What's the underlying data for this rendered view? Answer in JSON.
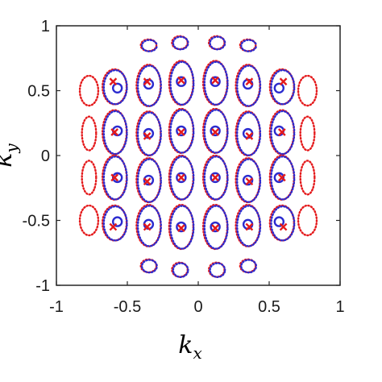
{
  "chart_data": {
    "type": "scatter",
    "title": "",
    "xlabel": {
      "base": "k",
      "sub": "x"
    },
    "ylabel": {
      "base": "k",
      "sub": "y"
    },
    "xlim": [
      -1,
      1
    ],
    "ylim": [
      -1,
      1
    ],
    "xticks": [
      "-1",
      "-0.5",
      "0",
      "0.5",
      "1"
    ],
    "yticks": [
      "1",
      "0.5",
      "0",
      "-0.5",
      "-1"
    ],
    "grid": false,
    "legend": "none",
    "colors": {
      "red": "#e41a1c",
      "blue": "#2b2bcf",
      "axis": "#262626"
    },
    "series": [
      {
        "marker": "o",
        "color": "blue",
        "points": [
          [
            -0.57,
            0.52
          ],
          [
            -0.35,
            0.55
          ],
          [
            -0.12,
            0.57
          ],
          [
            0.12,
            0.57
          ],
          [
            0.35,
            0.55
          ],
          [
            0.57,
            0.52
          ],
          [
            -0.57,
            0.19
          ],
          [
            -0.35,
            0.17
          ],
          [
            -0.12,
            0.19
          ],
          [
            0.12,
            0.19
          ],
          [
            0.35,
            0.17
          ],
          [
            0.57,
            0.19
          ],
          [
            -0.57,
            -0.17
          ],
          [
            -0.35,
            -0.19
          ],
          [
            -0.12,
            -0.17
          ],
          [
            0.12,
            -0.17
          ],
          [
            0.35,
            -0.19
          ],
          [
            0.57,
            -0.17
          ],
          [
            -0.57,
            -0.51
          ],
          [
            -0.35,
            -0.53
          ],
          [
            -0.12,
            -0.55
          ],
          [
            0.12,
            -0.55
          ],
          [
            0.35,
            -0.53
          ],
          [
            0.57,
            -0.51
          ]
        ]
      },
      {
        "marker": "x",
        "color": "red",
        "points": [
          [
            -0.6,
            0.57
          ],
          [
            -0.36,
            0.57
          ],
          [
            -0.12,
            0.58
          ],
          [
            0.12,
            0.58
          ],
          [
            0.36,
            0.57
          ],
          [
            0.6,
            0.57
          ],
          [
            -0.59,
            0.18
          ],
          [
            -0.36,
            0.15
          ],
          [
            -0.12,
            0.18
          ],
          [
            0.12,
            0.18
          ],
          [
            0.36,
            0.15
          ],
          [
            0.59,
            0.18
          ],
          [
            -0.59,
            -0.17
          ],
          [
            -0.36,
            -0.2
          ],
          [
            -0.12,
            -0.17
          ],
          [
            0.12,
            -0.17
          ],
          [
            0.36,
            -0.2
          ],
          [
            0.59,
            -0.17
          ],
          [
            -0.6,
            -0.55
          ],
          [
            -0.36,
            -0.55
          ],
          [
            -0.12,
            -0.56
          ],
          [
            0.12,
            -0.56
          ],
          [
            0.36,
            -0.55
          ],
          [
            0.6,
            -0.55
          ]
        ]
      },
      {
        "marker": "dotted-contour",
        "color": "red+blue",
        "ellipses": [
          {
            "cx": -0.13,
            "cy": 0.87,
            "rx": 0.055,
            "ry": 0.05
          },
          {
            "cx": 0.13,
            "cy": 0.87,
            "rx": 0.055,
            "ry": 0.05
          },
          {
            "cx": -0.35,
            "cy": 0.85,
            "rx": 0.055,
            "ry": 0.045
          },
          {
            "cx": 0.35,
            "cy": 0.85,
            "rx": 0.055,
            "ry": 0.045
          },
          {
            "cx": -0.59,
            "cy": 0.53,
            "rx": 0.085,
            "ry": 0.135
          },
          {
            "cx": -0.35,
            "cy": 0.54,
            "rx": 0.085,
            "ry": 0.16
          },
          {
            "cx": -0.12,
            "cy": 0.56,
            "rx": 0.085,
            "ry": 0.17
          },
          {
            "cx": 0.12,
            "cy": 0.56,
            "rx": 0.085,
            "ry": 0.17
          },
          {
            "cx": 0.35,
            "cy": 0.54,
            "rx": 0.085,
            "ry": 0.16
          },
          {
            "cx": 0.59,
            "cy": 0.53,
            "rx": 0.085,
            "ry": 0.135
          },
          {
            "cx": -0.59,
            "cy": 0.18,
            "rx": 0.085,
            "ry": 0.17
          },
          {
            "cx": -0.35,
            "cy": 0.17,
            "rx": 0.085,
            "ry": 0.17
          },
          {
            "cx": -0.12,
            "cy": 0.19,
            "rx": 0.085,
            "ry": 0.17
          },
          {
            "cx": 0.12,
            "cy": 0.19,
            "rx": 0.085,
            "ry": 0.17
          },
          {
            "cx": 0.35,
            "cy": 0.17,
            "rx": 0.085,
            "ry": 0.17
          },
          {
            "cx": 0.59,
            "cy": 0.18,
            "rx": 0.085,
            "ry": 0.17
          },
          {
            "cx": -0.59,
            "cy": -0.17,
            "rx": 0.085,
            "ry": 0.17
          },
          {
            "cx": -0.35,
            "cy": -0.19,
            "rx": 0.085,
            "ry": 0.17
          },
          {
            "cx": -0.12,
            "cy": -0.17,
            "rx": 0.085,
            "ry": 0.17
          },
          {
            "cx": 0.12,
            "cy": -0.17,
            "rx": 0.085,
            "ry": 0.17
          },
          {
            "cx": 0.35,
            "cy": -0.19,
            "rx": 0.085,
            "ry": 0.17
          },
          {
            "cx": 0.59,
            "cy": -0.17,
            "rx": 0.085,
            "ry": 0.17
          },
          {
            "cx": -0.59,
            "cy": -0.52,
            "rx": 0.085,
            "ry": 0.135
          },
          {
            "cx": -0.35,
            "cy": -0.54,
            "rx": 0.085,
            "ry": 0.16
          },
          {
            "cx": -0.12,
            "cy": -0.55,
            "rx": 0.085,
            "ry": 0.17
          },
          {
            "cx": 0.12,
            "cy": -0.55,
            "rx": 0.085,
            "ry": 0.17
          },
          {
            "cx": 0.35,
            "cy": -0.54,
            "rx": 0.085,
            "ry": 0.16
          },
          {
            "cx": 0.59,
            "cy": -0.52,
            "rx": 0.085,
            "ry": 0.135
          },
          {
            "cx": -0.35,
            "cy": -0.85,
            "rx": 0.055,
            "ry": 0.05
          },
          {
            "cx": -0.13,
            "cy": -0.88,
            "rx": 0.055,
            "ry": 0.055
          },
          {
            "cx": 0.13,
            "cy": -0.88,
            "rx": 0.055,
            "ry": 0.055
          },
          {
            "cx": 0.35,
            "cy": -0.85,
            "rx": 0.055,
            "ry": 0.05
          }
        ]
      },
      {
        "marker": "dotted-contour",
        "color": "red",
        "ellipses": [
          {
            "cx": -0.77,
            "cy": 0.5,
            "rx": 0.065,
            "ry": 0.115
          },
          {
            "cx": 0.77,
            "cy": 0.5,
            "rx": 0.065,
            "ry": 0.115
          },
          {
            "cx": -0.77,
            "cy": 0.17,
            "rx": 0.05,
            "ry": 0.13
          },
          {
            "cx": 0.77,
            "cy": 0.17,
            "rx": 0.05,
            "ry": 0.13
          },
          {
            "cx": -0.77,
            "cy": -0.17,
            "rx": 0.05,
            "ry": 0.13
          },
          {
            "cx": 0.77,
            "cy": -0.17,
            "rx": 0.05,
            "ry": 0.13
          },
          {
            "cx": -0.77,
            "cy": -0.5,
            "rx": 0.065,
            "ry": 0.115
          },
          {
            "cx": 0.77,
            "cy": -0.5,
            "rx": 0.065,
            "ry": 0.115
          }
        ]
      }
    ]
  }
}
